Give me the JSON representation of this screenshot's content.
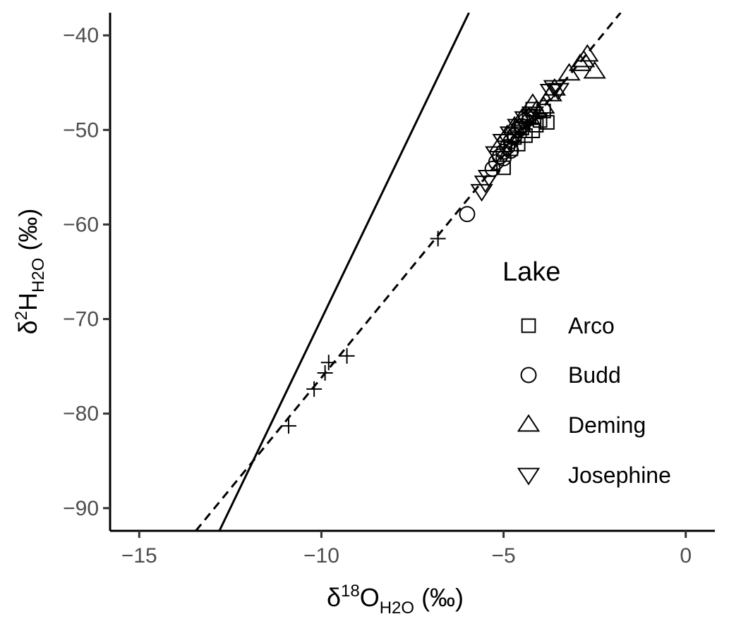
{
  "chart_data": {
    "type": "scatter",
    "xlabel": {
      "main": "δ",
      "sup": "18",
      "mid": "O",
      "sub": "H2O",
      "unit": " (‰)"
    },
    "ylabel": {
      "main": "δ",
      "sup": "2",
      "mid": "H",
      "sub": "H2O",
      "unit": " (‰)"
    },
    "xlim": [
      -15.8,
      0.8
    ],
    "ylim": [
      -92.4,
      -37.6
    ],
    "x_ticks": [
      -15,
      -10,
      -5,
      0
    ],
    "x_tick_labels": [
      "−15",
      "−10",
      "−5",
      "0"
    ],
    "y_ticks": [
      -90,
      -80,
      -70,
      -60,
      -50,
      -40
    ],
    "y_tick_labels": [
      "−90",
      "−80",
      "−70",
      "−60",
      "−50",
      "−40"
    ],
    "grid": false,
    "legend": {
      "title": "Lake",
      "placement": "right",
      "entries": [
        {
          "label": "Arco",
          "shape": "square"
        },
        {
          "label": "Budd",
          "shape": "circle"
        },
        {
          "label": "Deming",
          "shape": "triangle-up"
        },
        {
          "label": "Josephine",
          "shape": "triangle-down"
        }
      ]
    },
    "lines": [
      {
        "style": "solid",
        "slope": 8,
        "intercept": 10
      },
      {
        "style": "dashed",
        "slope": 4.7,
        "intercept": -29.2
      }
    ],
    "series": [
      {
        "shape": "cross",
        "points": [
          [
            -10.9,
            -81.3
          ],
          [
            -10.2,
            -77.4
          ],
          [
            -9.9,
            -75.7
          ],
          [
            -9.8,
            -74.6
          ],
          [
            -9.3,
            -73.9
          ],
          [
            -6.8,
            -61.5
          ]
        ]
      },
      {
        "name": "Arco",
        "shape": "square",
        "points": [
          [
            -5.0,
            -54.0
          ],
          [
            -4.6,
            -51.5
          ],
          [
            -4.4,
            -50.6
          ],
          [
            -4.2,
            -50.1
          ],
          [
            -4.1,
            -49.5
          ],
          [
            -4.0,
            -49.0
          ],
          [
            -4.3,
            -48.5
          ],
          [
            -4.5,
            -49.8
          ],
          [
            -4.7,
            -50.8
          ],
          [
            -4.8,
            -52.0
          ],
          [
            -3.9,
            -48.0
          ],
          [
            -4.2,
            -47.8
          ],
          [
            -3.8,
            -49.2
          ]
        ]
      },
      {
        "name": "Budd",
        "shape": "circle",
        "points": [
          [
            -6.0,
            -58.9
          ],
          [
            -5.3,
            -54.1
          ],
          [
            -5.2,
            -53.4
          ],
          [
            -5.1,
            -52.8
          ],
          [
            -5.0,
            -52.3
          ],
          [
            -4.9,
            -51.8
          ],
          [
            -4.8,
            -51.2
          ],
          [
            -4.7,
            -50.6
          ],
          [
            -4.6,
            -50.0
          ],
          [
            -4.5,
            -49.6
          ],
          [
            -4.4,
            -49.0
          ],
          [
            -5.0,
            -53.0
          ],
          [
            -4.8,
            -52.2
          ]
        ]
      },
      {
        "name": "Deming",
        "shape": "triangle-up",
        "points": [
          [
            -2.7,
            -42.0
          ],
          [
            -2.8,
            -42.6
          ],
          [
            -2.9,
            -43.0
          ],
          [
            -2.5,
            -43.8
          ],
          [
            -3.2,
            -44.0
          ],
          [
            -3.6,
            -45.6
          ],
          [
            -3.7,
            -46.2
          ],
          [
            -3.9,
            -47.5
          ],
          [
            -4.1,
            -47.9
          ],
          [
            -4.3,
            -48.6
          ],
          [
            -4.5,
            -48.8
          ],
          [
            -4.7,
            -49.6
          ],
          [
            -4.9,
            -50.5
          ],
          [
            -5.1,
            -51.6
          ],
          [
            -4.2,
            -47.2
          ]
        ]
      },
      {
        "name": "Josephine",
        "shape": "triangle-down",
        "points": [
          [
            -5.6,
            -56.5
          ],
          [
            -5.5,
            -55.6
          ],
          [
            -5.4,
            -55.0
          ],
          [
            -3.6,
            -45.5
          ],
          [
            -3.7,
            -45.9
          ],
          [
            -3.5,
            -45.8
          ],
          [
            -4.4,
            -48.8
          ],
          [
            -4.6,
            -49.6
          ],
          [
            -4.8,
            -50.4
          ],
          [
            -5.0,
            -51.2
          ],
          [
            -5.2,
            -52.5
          ],
          [
            -4.2,
            -48.3
          ]
        ]
      }
    ]
  }
}
